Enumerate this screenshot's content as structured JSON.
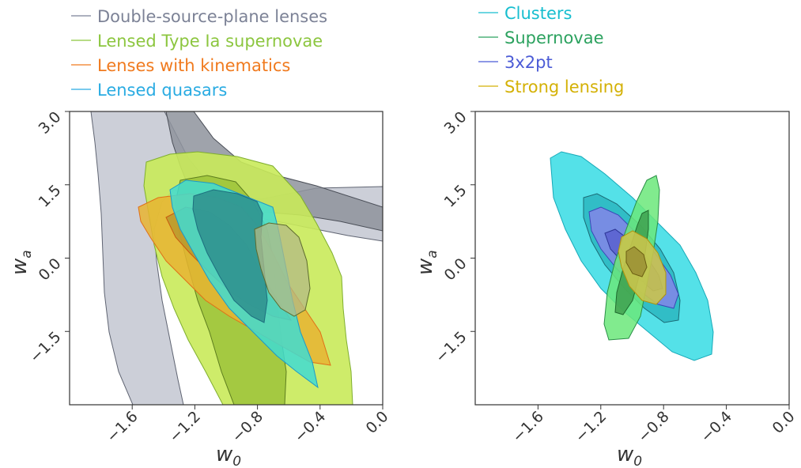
{
  "chart_data": [
    {
      "type": "contour",
      "xlabel": "w",
      "xlabel_sub": "0",
      "ylabel": "w",
      "ylabel_sub": "a",
      "xlim": [
        -2.0,
        0.0
      ],
      "ylim": [
        -3.0,
        3.0
      ],
      "xticks": [
        -1.6,
        -1.2,
        -0.8,
        -0.4,
        0.0
      ],
      "xtick_labels": [
        "−1.6",
        "−1.2",
        "−0.8",
        "−0.4",
        "0.0"
      ],
      "yticks": [
        -1.5,
        0.0,
        1.5,
        3.0
      ],
      "ytick_labels": [
        "−1.5",
        "0.0",
        "1.5",
        "3.0"
      ],
      "legend_placement": "top",
      "series": [
        {
          "name": "Double-source-plane lenses",
          "color": "#7c8296",
          "fill": "#c7cbd5",
          "fill_inner": "#959aa1"
        },
        {
          "name": "Lensed Type Ia supernovae",
          "color": "#8cc63f",
          "fill": "#c9e86a",
          "fill_inner": "#96bf34"
        },
        {
          "name": "Lenses with kinematics",
          "color": "#f07a1e",
          "fill": "#e8b430",
          "fill_inner": "#b5952f"
        },
        {
          "name": "Lensed quasars",
          "color": "#29abe2",
          "fill": "#3ddbd0",
          "fill_inner": "#2c8f8c"
        }
      ]
    },
    {
      "type": "contour",
      "xlabel": "w",
      "xlabel_sub": "0",
      "ylabel": "w",
      "ylabel_sub": "a",
      "xlim": [
        -2.0,
        0.0
      ],
      "ylim": [
        -3.0,
        3.0
      ],
      "xticks": [
        -1.6,
        -1.2,
        -0.8,
        -0.4,
        0.0
      ],
      "xtick_labels": [
        "−1.6",
        "−1.2",
        "−0.8",
        "−0.4",
        "0.0"
      ],
      "yticks": [
        -1.5,
        0.0,
        1.5,
        3.0
      ],
      "ytick_labels": [
        "−1.5",
        "0.0",
        "1.5",
        "3.0"
      ],
      "legend_placement": "top",
      "series": [
        {
          "name": "Clusters",
          "color": "#17becf",
          "fill": "#3fe0e6",
          "fill_inner": "#2ab9c2"
        },
        {
          "name": "Supernovae",
          "color": "#2ca25f",
          "fill": "#6be87a",
          "fill_inner": "#3c9c4a"
        },
        {
          "name": "3x2pt",
          "color": "#4b5bd6",
          "fill": "#7f86e6",
          "fill_inner": "#5b63cf"
        },
        {
          "name": "Strong lensing",
          "color": "#d4b106",
          "fill": "#c9c64a",
          "fill_inner": "#a09535"
        }
      ]
    }
  ]
}
